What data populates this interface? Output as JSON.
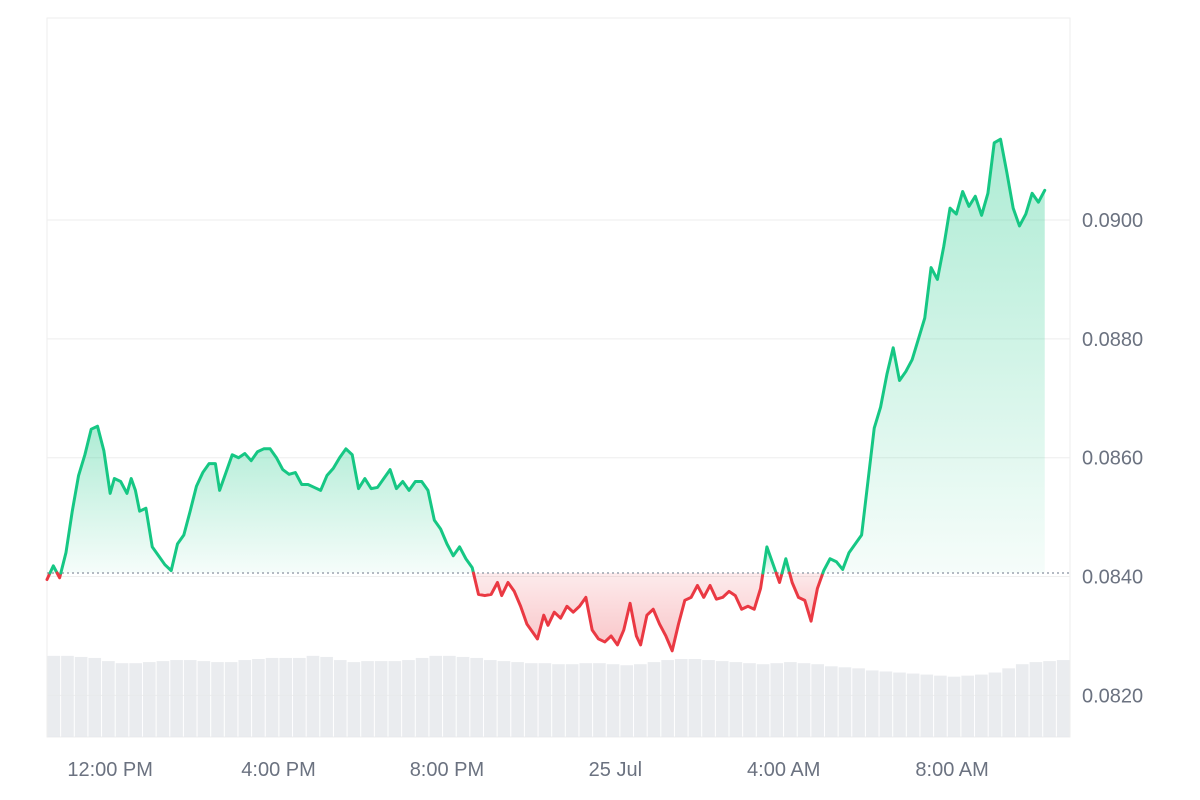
{
  "chart_data": {
    "type": "area",
    "baseline": 0.08406,
    "colors": {
      "up_line": "#16c784",
      "down_line": "#ea3943",
      "up_fill": "#16c784",
      "down_fill": "#ea3943",
      "grid": "#eeeeee",
      "baseline": "#9ca3af",
      "volume": "#e5e7eb",
      "axis_text": "#6b7280"
    },
    "ylim": [
      0.0813,
      0.0934
    ],
    "yticks": [
      {
        "value": 0.082,
        "label": "0.0820"
      },
      {
        "value": 0.084,
        "label": "0.0840"
      },
      {
        "value": 0.086,
        "label": "0.0860"
      },
      {
        "value": 0.088,
        "label": "0.0880"
      },
      {
        "value": 0.09,
        "label": "0.0900"
      }
    ],
    "xlim": [
      10.5,
      34.8
    ],
    "xticks": [
      {
        "value": 12,
        "label": "12:00 PM"
      },
      {
        "value": 16,
        "label": "4:00 PM"
      },
      {
        "value": 20,
        "label": "8:00 PM"
      },
      {
        "value": 24,
        "label": "25 Jul"
      },
      {
        "value": 28,
        "label": "4:00 AM"
      },
      {
        "value": 32,
        "label": "8:00 AM"
      }
    ],
    "x_unit": "hours since 00:00 on 24 Jul",
    "price_series": [
      [
        10.5,
        0.08395
      ],
      [
        10.65,
        0.08418
      ],
      [
        10.8,
        0.08398
      ],
      [
        10.95,
        0.0844
      ],
      [
        11.1,
        0.0851
      ],
      [
        11.25,
        0.0857
      ],
      [
        11.4,
        0.08605
      ],
      [
        11.55,
        0.08648
      ],
      [
        11.7,
        0.08653
      ],
      [
        11.85,
        0.08612
      ],
      [
        12.0,
        0.0854
      ],
      [
        12.1,
        0.08565
      ],
      [
        12.25,
        0.0856
      ],
      [
        12.4,
        0.0854
      ],
      [
        12.5,
        0.08565
      ],
      [
        12.6,
        0.08545
      ],
      [
        12.7,
        0.0851
      ],
      [
        12.85,
        0.08515
      ],
      [
        13.0,
        0.0845
      ],
      [
        13.15,
        0.08435
      ],
      [
        13.3,
        0.0842
      ],
      [
        13.45,
        0.0841
      ],
      [
        13.6,
        0.08455
      ],
      [
        13.75,
        0.0847
      ],
      [
        13.9,
        0.0851
      ],
      [
        14.05,
        0.08552
      ],
      [
        14.2,
        0.08575
      ],
      [
        14.35,
        0.0859
      ],
      [
        14.5,
        0.0859
      ],
      [
        14.6,
        0.08545
      ],
      [
        14.75,
        0.08575
      ],
      [
        14.9,
        0.08605
      ],
      [
        15.05,
        0.086
      ],
      [
        15.2,
        0.08607
      ],
      [
        15.35,
        0.08595
      ],
      [
        15.5,
        0.0861
      ],
      [
        15.65,
        0.08615
      ],
      [
        15.8,
        0.08615
      ],
      [
        15.95,
        0.086
      ],
      [
        16.1,
        0.0858
      ],
      [
        16.25,
        0.08572
      ],
      [
        16.4,
        0.08575
      ],
      [
        16.55,
        0.08555
      ],
      [
        16.7,
        0.08555
      ],
      [
        16.85,
        0.0855
      ],
      [
        17.0,
        0.08545
      ],
      [
        17.15,
        0.0857
      ],
      [
        17.3,
        0.08582
      ],
      [
        17.45,
        0.086
      ],
      [
        17.6,
        0.08615
      ],
      [
        17.75,
        0.08605
      ],
      [
        17.9,
        0.08548
      ],
      [
        18.05,
        0.08565
      ],
      [
        18.2,
        0.08548
      ],
      [
        18.35,
        0.0855
      ],
      [
        18.5,
        0.08565
      ],
      [
        18.65,
        0.0858
      ],
      [
        18.8,
        0.08548
      ],
      [
        18.95,
        0.0856
      ],
      [
        19.1,
        0.08545
      ],
      [
        19.25,
        0.0856
      ],
      [
        19.4,
        0.0856
      ],
      [
        19.55,
        0.08545
      ],
      [
        19.7,
        0.08495
      ],
      [
        19.85,
        0.0848
      ],
      [
        20.0,
        0.08455
      ],
      [
        20.15,
        0.08435
      ],
      [
        20.3,
        0.0845
      ],
      [
        20.45,
        0.0843
      ],
      [
        20.6,
        0.08415
      ],
      [
        20.75,
        0.0837
      ],
      [
        20.9,
        0.08368
      ],
      [
        21.05,
        0.0837
      ],
      [
        21.2,
        0.0839
      ],
      [
        21.3,
        0.08368
      ],
      [
        21.45,
        0.0839
      ],
      [
        21.6,
        0.08375
      ],
      [
        21.75,
        0.0835
      ],
      [
        21.9,
        0.0832
      ],
      [
        22.05,
        0.08305
      ],
      [
        22.15,
        0.08295
      ],
      [
        22.3,
        0.08335
      ],
      [
        22.4,
        0.08318
      ],
      [
        22.55,
        0.0834
      ],
      [
        22.7,
        0.0833
      ],
      [
        22.85,
        0.0835
      ],
      [
        23.0,
        0.0834
      ],
      [
        23.15,
        0.0835
      ],
      [
        23.3,
        0.08365
      ],
      [
        23.45,
        0.0831
      ],
      [
        23.6,
        0.08295
      ],
      [
        23.75,
        0.0829
      ],
      [
        23.9,
        0.083
      ],
      [
        24.05,
        0.08285
      ],
      [
        24.2,
        0.0831
      ],
      [
        24.35,
        0.08355
      ],
      [
        24.5,
        0.083
      ],
      [
        24.6,
        0.08285
      ],
      [
        24.75,
        0.08335
      ],
      [
        24.9,
        0.08345
      ],
      [
        25.05,
        0.0832
      ],
      [
        25.2,
        0.083
      ],
      [
        25.35,
        0.08275
      ],
      [
        25.5,
        0.0832
      ],
      [
        25.65,
        0.0836
      ],
      [
        25.8,
        0.08365
      ],
      [
        25.95,
        0.08385
      ],
      [
        26.1,
        0.08365
      ],
      [
        26.25,
        0.08385
      ],
      [
        26.4,
        0.08362
      ],
      [
        26.55,
        0.08365
      ],
      [
        26.7,
        0.08375
      ],
      [
        26.85,
        0.08368
      ],
      [
        27.0,
        0.08345
      ],
      [
        27.15,
        0.0835
      ],
      [
        27.3,
        0.08345
      ],
      [
        27.45,
        0.0838
      ],
      [
        27.6,
        0.0845
      ],
      [
        27.75,
        0.0842
      ],
      [
        27.9,
        0.0839
      ],
      [
        28.05,
        0.0843
      ],
      [
        28.2,
        0.0839
      ],
      [
        28.35,
        0.08365
      ],
      [
        28.5,
        0.0836
      ],
      [
        28.65,
        0.08325
      ],
      [
        28.8,
        0.0838
      ],
      [
        28.95,
        0.0841
      ],
      [
        29.1,
        0.0843
      ],
      [
        29.25,
        0.08425
      ],
      [
        29.4,
        0.08412
      ],
      [
        29.55,
        0.0844
      ],
      [
        29.7,
        0.08455
      ],
      [
        29.85,
        0.0847
      ],
      [
        30.0,
        0.0856
      ],
      [
        30.15,
        0.0865
      ],
      [
        30.3,
        0.08685
      ],
      [
        30.45,
        0.0874
      ],
      [
        30.6,
        0.08785
      ],
      [
        30.75,
        0.0873
      ],
      [
        30.9,
        0.08745
      ],
      [
        31.05,
        0.08765
      ],
      [
        31.2,
        0.088
      ],
      [
        31.35,
        0.08835
      ],
      [
        31.5,
        0.0892
      ],
      [
        31.65,
        0.089
      ],
      [
        31.8,
        0.08955
      ],
      [
        31.95,
        0.0902
      ],
      [
        32.1,
        0.0901
      ],
      [
        32.25,
        0.09048
      ],
      [
        32.4,
        0.09023
      ],
      [
        32.55,
        0.0904
      ],
      [
        32.7,
        0.09008
      ],
      [
        32.85,
        0.09045
      ],
      [
        33.0,
        0.0913
      ],
      [
        33.15,
        0.09136
      ],
      [
        33.3,
        0.0908
      ],
      [
        33.45,
        0.0902
      ],
      [
        33.6,
        0.0899
      ],
      [
        33.75,
        0.0901
      ],
      [
        33.9,
        0.09045
      ],
      [
        34.05,
        0.0903
      ],
      [
        34.2,
        0.0905
      ]
    ],
    "volume_series": [
      0.78,
      0.78,
      0.77,
      0.76,
      0.73,
      0.71,
      0.71,
      0.72,
      0.73,
      0.74,
      0.74,
      0.73,
      0.72,
      0.72,
      0.74,
      0.75,
      0.76,
      0.76,
      0.76,
      0.78,
      0.77,
      0.74,
      0.72,
      0.73,
      0.73,
      0.73,
      0.74,
      0.76,
      0.78,
      0.78,
      0.77,
      0.76,
      0.74,
      0.73,
      0.72,
      0.71,
      0.71,
      0.7,
      0.7,
      0.71,
      0.71,
      0.7,
      0.69,
      0.7,
      0.72,
      0.74,
      0.75,
      0.75,
      0.74,
      0.73,
      0.72,
      0.71,
      0.7,
      0.71,
      0.72,
      0.71,
      0.7,
      0.68,
      0.67,
      0.66,
      0.64,
      0.63,
      0.62,
      0.61,
      0.6,
      0.59,
      0.58,
      0.59,
      0.6,
      0.62,
      0.66,
      0.7,
      0.72,
      0.73,
      0.74
    ]
  }
}
